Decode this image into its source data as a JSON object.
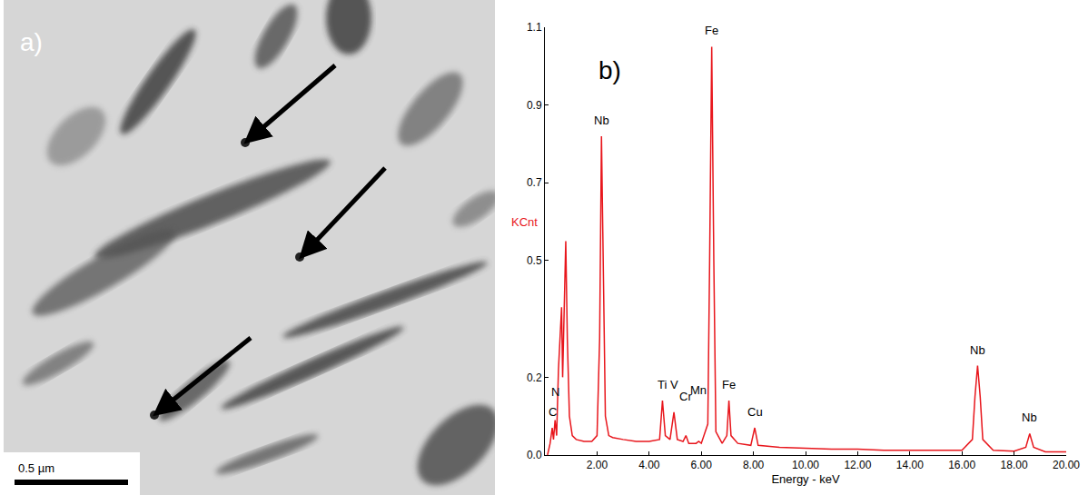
{
  "micrograph": {
    "label": "a)",
    "scale_bar": "0.5 µm"
  },
  "chart_data": {
    "type": "line",
    "panel_label": "b)",
    "xlabel": "Energy - keV",
    "ylabel": "KCnt",
    "color": "#e8161c",
    "x": [
      0.1,
      0.2,
      0.28,
      0.33,
      0.39,
      0.45,
      0.52,
      0.58,
      0.64,
      0.68,
      0.74,
      0.8,
      0.86,
      0.94,
      1.05,
      1.2,
      1.5,
      1.8,
      2.0,
      2.1,
      2.17,
      2.24,
      2.32,
      2.45,
      2.6,
      3.0,
      3.5,
      4.0,
      4.4,
      4.51,
      4.62,
      4.8,
      4.95,
      5.08,
      5.3,
      5.41,
      5.52,
      5.8,
      5.9,
      6.0,
      6.25,
      6.32,
      6.4,
      6.48,
      6.56,
      6.8,
      6.98,
      7.06,
      7.14,
      7.4,
      7.9,
      8.05,
      8.18,
      9.0,
      10.0,
      11.0,
      12.0,
      13.0,
      14.0,
      15.0,
      16.0,
      16.4,
      16.5,
      16.6,
      16.7,
      16.8,
      17.2,
      18.0,
      18.45,
      18.6,
      18.75,
      19.2,
      20.0
    ],
    "values": [
      0.0,
      0.03,
      0.07,
      0.04,
      0.09,
      0.05,
      0.22,
      0.3,
      0.38,
      0.2,
      0.35,
      0.55,
      0.3,
      0.1,
      0.05,
      0.04,
      0.035,
      0.035,
      0.05,
      0.3,
      0.82,
      0.45,
      0.1,
      0.05,
      0.045,
      0.04,
      0.035,
      0.035,
      0.04,
      0.14,
      0.05,
      0.04,
      0.11,
      0.04,
      0.035,
      0.05,
      0.03,
      0.03,
      0.035,
      0.03,
      0.08,
      0.5,
      1.05,
      0.5,
      0.06,
      0.03,
      0.05,
      0.14,
      0.05,
      0.03,
      0.025,
      0.07,
      0.025,
      0.02,
      0.018,
      0.015,
      0.015,
      0.012,
      0.012,
      0.012,
      0.012,
      0.04,
      0.15,
      0.23,
      0.15,
      0.04,
      0.012,
      0.01,
      0.02,
      0.055,
      0.02,
      0.008,
      0.008
    ],
    "xlim": [
      0,
      20
    ],
    "xticks": [
      {
        "value": 2,
        "label": "2.00"
      },
      {
        "value": 4,
        "label": "4.00"
      },
      {
        "value": 6,
        "label": "6.00"
      },
      {
        "value": 8,
        "label": "8.00"
      },
      {
        "value": 10,
        "label": "10.00"
      },
      {
        "value": 12,
        "label": "12.00"
      },
      {
        "value": 14,
        "label": "14.00"
      },
      {
        "value": 16,
        "label": "16.00"
      },
      {
        "value": 18,
        "label": "18.00"
      },
      {
        "value": 20,
        "label": "20.00"
      }
    ],
    "ylim": [
      0,
      1.1
    ],
    "yticks": [
      {
        "value": 0,
        "label": "0.0"
      },
      0.2,
      0.5,
      0.7,
      0.9,
      1.1
    ],
    "grid": false,
    "annotations": [
      {
        "text": "C",
        "x": 0.28
      },
      {
        "text": "N",
        "x": 0.39
      },
      {
        "text": "Nb",
        "x": 2.17
      },
      {
        "text": "Ti",
        "x": 4.51
      },
      {
        "text": "V",
        "x": 4.95
      },
      {
        "text": "Cr",
        "x": 5.41
      },
      {
        "text": "Mn",
        "x": 5.9
      },
      {
        "text": "Fe",
        "x": 6.4
      },
      {
        "text": "Fe",
        "x": 7.06
      },
      {
        "text": "Cu",
        "x": 8.05
      },
      {
        "text": "Nb",
        "x": 16.6
      },
      {
        "text": "Nb",
        "x": 18.6
      }
    ]
  }
}
